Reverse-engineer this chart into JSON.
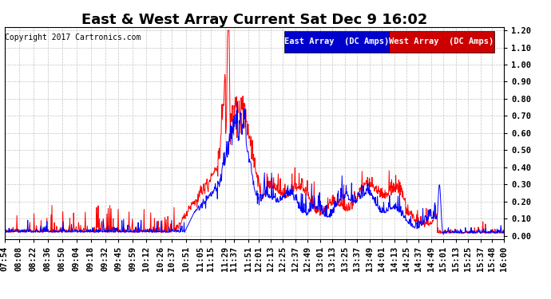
{
  "title": "East & West Array Current Sat Dec 9 16:02",
  "copyright": "Copyright 2017 Cartronics.com",
  "east_label": "East Array  (DC Amps)",
  "west_label": "West Array  (DC Amps)",
  "east_color": "#0000ff",
  "west_color": "#ff0000",
  "east_bg": "#0000cc",
  "west_bg": "#cc0000",
  "ylim": [
    0.0,
    1.2
  ],
  "yticks": [
    0.0,
    0.1,
    0.2,
    0.3,
    0.4,
    0.5,
    0.6,
    0.7,
    0.8,
    0.9,
    1.0,
    1.1,
    1.2
  ],
  "background_color": "#ffffff",
  "plot_bg": "#ffffff",
  "grid_color": "#aaaaaa",
  "title_fontsize": 13,
  "tick_fontsize": 7.5,
  "legend_fontsize": 7.5,
  "copyright_fontsize": 7
}
